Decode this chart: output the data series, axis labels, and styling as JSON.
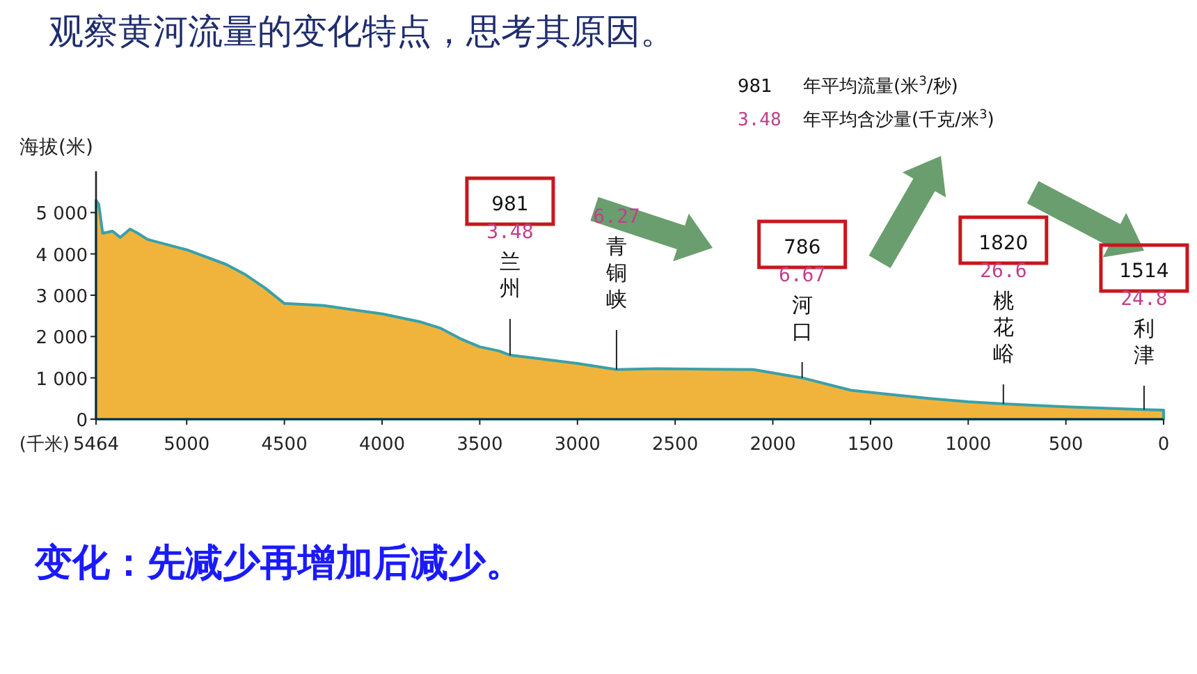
{
  "chart_data": {
    "type": "area",
    "title": "观察黄河流量的变化特点，思考其原因。",
    "xlabel": "(千米)",
    "ylabel": "海拔(米)",
    "color": "#f0b43c",
    "x": [
      5464,
      5450,
      5430,
      5380,
      5340,
      5290,
      5250,
      5200,
      5000,
      4800,
      4700,
      4600,
      4500,
      4300,
      4000,
      3800,
      3700,
      3600,
      3500,
      3400,
      3345,
      3000,
      2800,
      2600,
      2100,
      1850,
      1600,
      1400,
      1200,
      1000,
      820,
      500,
      100,
      0
    ],
    "values": [
      5300,
      5200,
      4500,
      4550,
      4400,
      4600,
      4500,
      4350,
      4100,
      3750,
      3500,
      3180,
      2800,
      2750,
      2550,
      2350,
      2200,
      1950,
      1750,
      1650,
      1550,
      1350,
      1200,
      1220,
      1200,
      1000,
      700,
      600,
      500,
      420,
      370,
      300,
      230,
      220
    ],
    "xlim": [
      5464,
      0
    ],
    "ylim": [
      0,
      6000
    ],
    "xticks": [
      5464,
      5000,
      4500,
      4000,
      3500,
      3000,
      2500,
      2000,
      1500,
      1000,
      500,
      0
    ],
    "yticks": [
      0,
      {
        "value": 1000,
        "label": "1 000"
      },
      {
        "value": 2000,
        "label": "2 000"
      },
      {
        "value": 3000,
        "label": "3 000"
      },
      {
        "value": 4000,
        "label": "4 000"
      },
      {
        "value": 5000,
        "label": "5 000"
      }
    ],
    "annotations": [
      "981",
      "3.48",
      {
        "text": "兰州",
        "x": 3345,
        "y": 1550
      },
      "6.27",
      {
        "text": "青铜峡",
        "x": 2800,
        "y": 1200
      },
      "786",
      "6.67",
      {
        "text": "河口",
        "x": 1850,
        "y": 1000
      },
      "1820",
      "26.6",
      {
        "text": "桃花峪",
        "x": 820,
        "y": 370
      },
      "1514",
      "24.8",
      {
        "text": "利津",
        "x": 100,
        "y": 230
      },
      "981",
      "年平均流量(米$^{3}$/秒)",
      "3.48",
      "年平均含沙量(千克/米$^{3}$)",
      "变化：先减少再增加后减少。"
    ]
  }
}
